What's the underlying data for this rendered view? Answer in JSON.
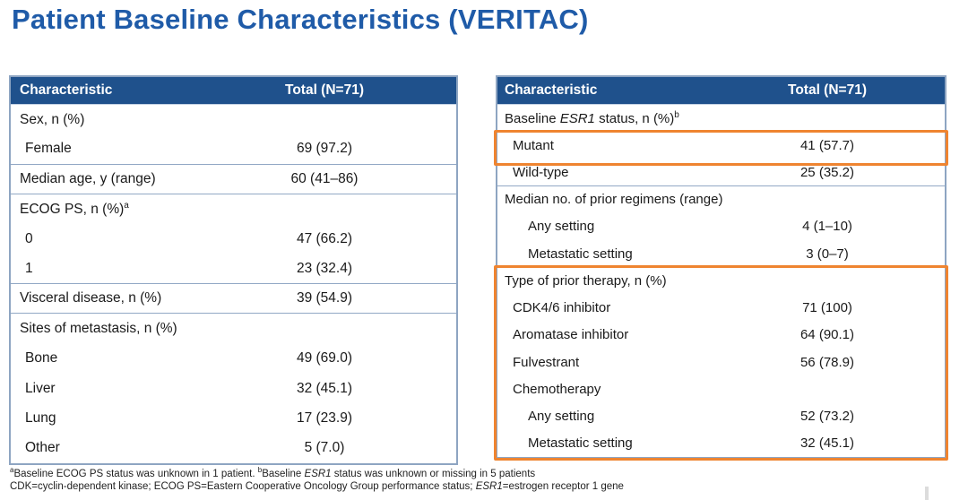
{
  "title": "Patient Baseline Characteristics (VERITAC)",
  "colors": {
    "title_blue": "#1F5BA8",
    "header_bg": "#1F518C",
    "table_border": "#8EA5C2",
    "highlight_orange": "#EF8430"
  },
  "tables": {
    "left": {
      "col_characteristic": "Characteristic",
      "col_total": "Total (N=71)",
      "rows": [
        {
          "label": "Sex, n (%)",
          "value": ""
        },
        {
          "label": "Female",
          "value": "69 (97.2)"
        },
        {
          "label": "Median age, y (range)",
          "value": "60 (41–86)"
        },
        {
          "label": "ECOG PS, n (%)",
          "sup": "a",
          "value": ""
        },
        {
          "label": "0",
          "value": "47 (66.2)"
        },
        {
          "label": "1",
          "value": "23 (32.4)"
        },
        {
          "label": "Visceral disease, n (%)",
          "value": "39 (54.9)"
        },
        {
          "label": "Sites of metastasis, n (%)",
          "value": ""
        },
        {
          "label": "Bone",
          "value": "49 (69.0)"
        },
        {
          "label": "Liver",
          "value": "32 (45.1)"
        },
        {
          "label": "Lung",
          "value": "17 (23.9)"
        },
        {
          "label": "Other",
          "value": "5 (7.0)"
        }
      ]
    },
    "right": {
      "col_characteristic": "Characteristic",
      "col_total": "Total (N=71)",
      "rows": [
        {
          "pre": "Baseline ",
          "italic": "ESR1",
          "post": " status, n (%)",
          "sup": "b",
          "value": ""
        },
        {
          "label": "Mutant",
          "value": "41 (57.7)"
        },
        {
          "label": "Wild-type",
          "value": "25 (35.2)"
        },
        {
          "label": "Median no. of prior regimens (range)",
          "value": ""
        },
        {
          "label": "Any setting",
          "value": "4 (1–10)"
        },
        {
          "label": "Metastatic setting",
          "value": "3 (0–7)"
        },
        {
          "label": "Type of prior therapy, n (%)",
          "value": ""
        },
        {
          "label": "CDK4/6 inhibitor",
          "value": "71 (100)"
        },
        {
          "label": "Aromatase inhibitor",
          "value": "64 (90.1)"
        },
        {
          "label": "Fulvestrant",
          "value": "56 (78.9)"
        },
        {
          "label": "Chemotherapy",
          "value": ""
        },
        {
          "label": "Any setting",
          "value": "52 (73.2)"
        },
        {
          "label": "Metastatic setting",
          "value": "32 (45.1)"
        }
      ]
    }
  },
  "footnotes": {
    "line1": {
      "sup_a": "a",
      "t1": "Baseline ECOG PS status was unknown in 1 patient. ",
      "sup_b": "b",
      "t2": "Baseline ",
      "italic": "ESR1",
      "t3": " status was unknown or missing in 5 patients"
    },
    "line2": {
      "t1": "CDK=cyclin-dependent kinase; ECOG PS=Eastern Cooperative Oncology Group performance status; ",
      "italic": "ESR1",
      "t2": "=estrogen receptor 1 gene"
    }
  }
}
